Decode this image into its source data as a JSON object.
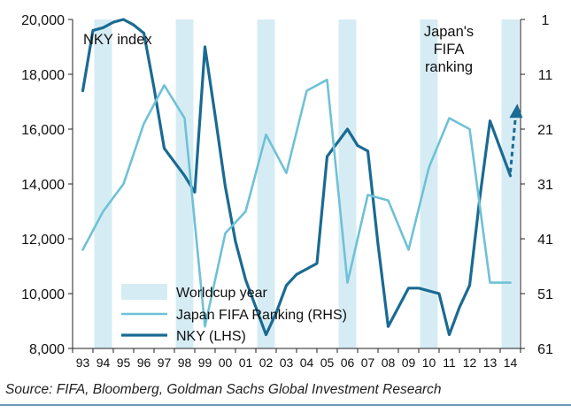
{
  "chart_data": {
    "type": "line",
    "categories": [
      "93",
      "94",
      "95",
      "96",
      "97",
      "98",
      "99",
      "00",
      "01",
      "02",
      "03",
      "04",
      "05",
      "06",
      "07",
      "08",
      "09",
      "10",
      "11",
      "12",
      "13",
      "14"
    ],
    "worldcup_years": [
      "94",
      "98",
      "02",
      "06",
      "10",
      "14"
    ],
    "series": [
      {
        "name": "NKY (LHS)",
        "axis": "left",
        "x": [
          1993.0,
          1993.5,
          1994.0,
          1994.5,
          1995.0,
          1995.5,
          1996.0,
          1996.5,
          1997.0,
          1997.5,
          1998.0,
          1998.5,
          1999.0,
          1999.5,
          2000.0,
          2000.5,
          2001.0,
          2001.5,
          2002.0,
          2002.5,
          2003.0,
          2003.5,
          2004.0,
          2004.5,
          2005.0,
          2005.5,
          2006.0,
          2006.5,
          2007.0,
          2007.5,
          2008.0,
          2008.5,
          2009.0,
          2009.5,
          2010.0,
          2010.5,
          2011.0,
          2011.5,
          2012.0,
          2012.5,
          2013.0,
          2013.5,
          2014.0
        ],
        "values": [
          17400,
          19600,
          19700,
          19900,
          20000,
          19800,
          19500,
          17500,
          15300,
          14800,
          14300,
          13700,
          19000,
          16500,
          13900,
          11900,
          10500,
          9500,
          8500,
          9300,
          10300,
          10700,
          10900,
          11100,
          15000,
          15500,
          16000,
          15400,
          15200,
          11800,
          8800,
          9500,
          10200,
          10200,
          10100,
          10000,
          8500,
          9500,
          10300,
          13500,
          16300,
          15300,
          14300
        ]
      },
      {
        "name": "Japan FIFA Ranking (RHS)",
        "axis": "right",
        "x": [
          1993,
          1994,
          1995,
          1996,
          1997,
          1998,
          1999,
          2000,
          2001,
          2002,
          2003,
          2004,
          2005,
          2006,
          2007,
          2008,
          2009,
          2010,
          2011,
          2012,
          2013,
          2014
        ],
        "values": [
          43,
          36,
          31,
          20,
          13,
          19,
          57,
          40,
          36,
          22,
          29,
          14,
          12,
          49,
          33,
          34,
          43,
          28,
          19,
          21,
          49,
          49
        ]
      }
    ],
    "projection": {
      "series": "NKY (LHS)",
      "from": {
        "x": 2014.0,
        "y": 14300
      },
      "to": {
        "x": 2014.3,
        "y": 16800
      }
    },
    "left_axis": {
      "ylim": [
        8000,
        20000
      ],
      "ticks": [
        8000,
        10000,
        12000,
        14000,
        16000,
        18000,
        20000
      ],
      "tick_labels": [
        "8,000",
        "10,000",
        "12,000",
        "14,000",
        "16,000",
        "18,000",
        "20,000"
      ]
    },
    "right_axis": {
      "ylim": [
        61,
        1
      ],
      "inverted": true,
      "ticks": [
        1,
        11,
        21,
        31,
        41,
        51,
        61
      ],
      "tick_labels": [
        "1",
        "11",
        "21",
        "31",
        "41",
        "51",
        "61"
      ]
    },
    "annotations": {
      "left": "NKY index",
      "right": [
        "Japan's",
        "FIFA",
        "ranking"
      ]
    },
    "legend": {
      "placement": "bottom-left",
      "items": [
        {
          "label": "Worldcup year",
          "kind": "band"
        },
        {
          "label": "Japan FIFA Ranking (RHS)",
          "kind": "line",
          "series": "Japan FIFA Ranking (RHS)"
        },
        {
          "label": "NKY (LHS)",
          "kind": "line",
          "series": "NKY (LHS)"
        }
      ]
    },
    "grid": false,
    "colors": {
      "nky": "#1a6a93",
      "fifa": "#6fc1d6",
      "band": "#d6ecf4"
    }
  },
  "source": "Source: FIFA, Bloomberg, Goldman Sachs Global Investment Research"
}
